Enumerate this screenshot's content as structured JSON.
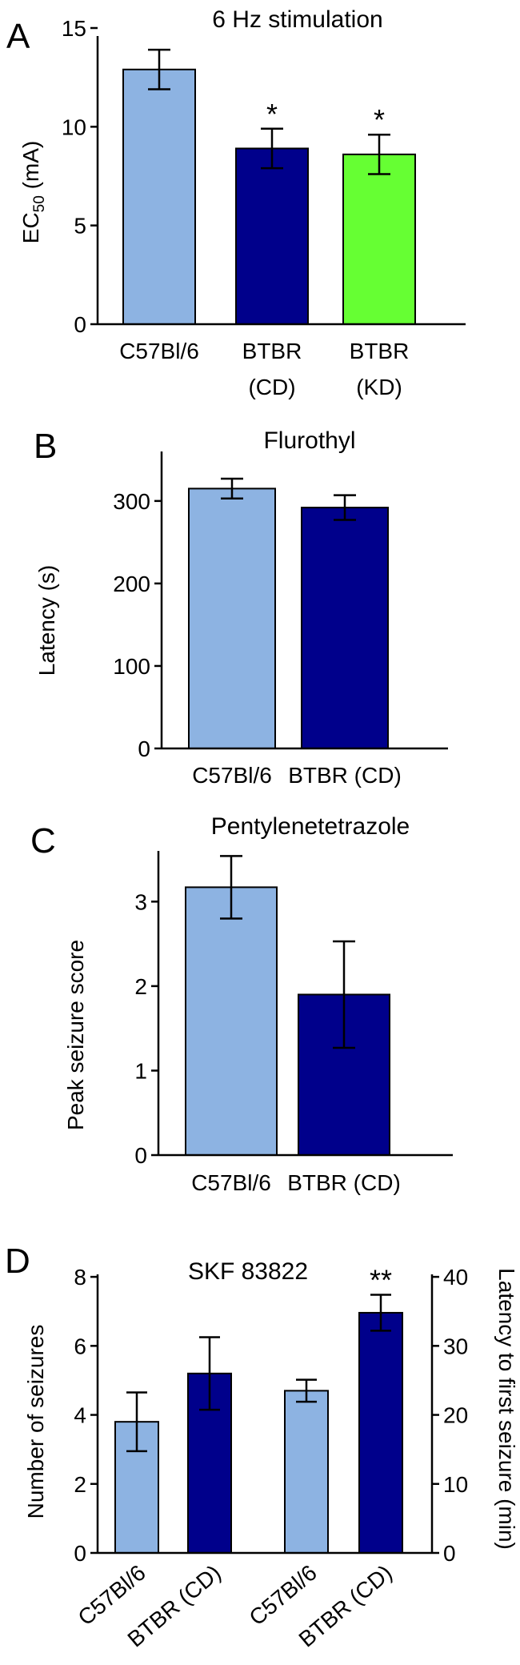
{
  "figure": {
    "colors": {
      "c57": "#8DB3E2",
      "btbr_cd": "#00008B",
      "btbr_kd": "#66FF33",
      "axis": "#000000"
    }
  },
  "chart_data": [
    {
      "panel": "A",
      "type": "bar",
      "title": "6 Hz stimulation",
      "ylabel_main": "EC",
      "ylabel_sub": "50",
      "ylabel_unit": " (mA)",
      "ylim": [
        0,
        15
      ],
      "yticks": [
        0,
        5,
        10,
        15
      ],
      "categories": [
        {
          "line1": "C57Bl/6",
          "line2": ""
        },
        {
          "line1": "BTBR",
          "line2": "(CD)"
        },
        {
          "line1": "BTBR",
          "line2": "(KD)"
        }
      ],
      "values": [
        12.9,
        8.9,
        8.6
      ],
      "errors": [
        1.0,
        1.0,
        1.0
      ],
      "colors": [
        "#8DB3E2",
        "#00008B",
        "#66FF33"
      ],
      "significance": [
        "",
        "*",
        "*"
      ]
    },
    {
      "panel": "B",
      "type": "bar",
      "title": "Flurothyl",
      "ylabel": "Latency (s)",
      "ylim": [
        0,
        360
      ],
      "yticks": [
        0,
        100,
        200,
        300
      ],
      "categories": [
        {
          "line1": "C57Bl/6",
          "line2": ""
        },
        {
          "line1": "BTBR (CD)",
          "line2": ""
        }
      ],
      "values": [
        315,
        292
      ],
      "errors": [
        12,
        15
      ],
      "colors": [
        "#8DB3E2",
        "#00008B"
      ],
      "significance": [
        "",
        ""
      ]
    },
    {
      "panel": "C",
      "type": "bar",
      "title": "Pentylenetetrazole",
      "ylabel": "Peak seizure score",
      "ylim": [
        0,
        3.6
      ],
      "yticks": [
        0,
        1,
        2,
        3
      ],
      "categories": [
        {
          "line1": "C57Bl/6",
          "line2": ""
        },
        {
          "line1": "BTBR (CD)",
          "line2": ""
        }
      ],
      "values": [
        3.17,
        1.9
      ],
      "errors": [
        0.37,
        0.63
      ],
      "colors": [
        "#8DB3E2",
        "#00008B"
      ],
      "significance": [
        "",
        ""
      ]
    },
    {
      "panel": "D",
      "type": "bar",
      "title": "SKF 83822",
      "ylabel": "Number of seizures",
      "ylabel_right": "Latency to first seizure (min)",
      "ylim": [
        0,
        9
      ],
      "yticks": [
        0,
        2,
        4,
        6,
        8
      ],
      "ylim_right": [
        0,
        45
      ],
      "yticks_right": [
        0,
        10,
        20,
        30,
        40
      ],
      "series": [
        {
          "name": "Number of seizures",
          "axis": "left",
          "categories": [
            "C57Bl/6",
            "BTBR (CD)"
          ],
          "values": [
            3.8,
            5.2
          ],
          "errors": [
            0.85,
            1.05
          ],
          "colors": [
            "#8DB3E2",
            "#00008B"
          ],
          "significance": [
            "",
            ""
          ]
        },
        {
          "name": "Latency to first seizure",
          "axis": "right",
          "categories": [
            "C57Bl/6",
            "BTBR (CD)"
          ],
          "values": [
            23.5,
            34.8
          ],
          "errors": [
            1.6,
            2.6
          ],
          "colors": [
            "#8DB3E2",
            "#00008B"
          ],
          "significance": [
            "",
            "**"
          ]
        }
      ]
    }
  ]
}
